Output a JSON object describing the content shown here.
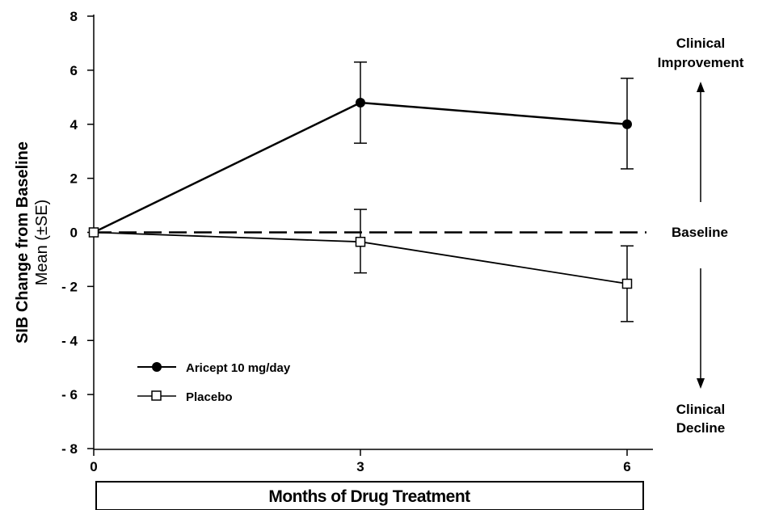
{
  "chart_data": {
    "type": "line",
    "xlabel": "Months of Drug Treatment",
    "ylabel": "SIB Change from Baseline",
    "ylabel_sub": "Mean (±SE)",
    "x": [
      0,
      3,
      6
    ],
    "x_ticks": [
      "0",
      "3",
      "6"
    ],
    "y_ticks": [
      "8",
      "6",
      "4",
      "2",
      "0",
      "- 2",
      "- 4",
      "- 6",
      "- 8"
    ],
    "y_tick_values": [
      8,
      6,
      4,
      2,
      0,
      -2,
      -4,
      -6,
      -8
    ],
    "xlim": [
      0,
      6.3
    ],
    "ylim": [
      -8,
      8
    ],
    "grid": false,
    "legend_position": "bottom-left",
    "series": [
      {
        "name": "Aricept 10 mg/day",
        "marker": "filled-circle",
        "color": "#000000",
        "values": [
          0,
          4.8,
          4.0
        ],
        "se_low": [
          0,
          3.3,
          2.35
        ],
        "se_high": [
          0,
          6.3,
          5.7
        ]
      },
      {
        "name": "Placebo",
        "marker": "open-square",
        "color": "#000000",
        "values": [
          0,
          -0.35,
          -1.9
        ],
        "se_low": [
          0,
          -1.5,
          -3.3
        ],
        "se_high": [
          0,
          0.85,
          -0.5
        ]
      }
    ],
    "baseline": {
      "value": 0,
      "style": "dashed",
      "label": "Baseline"
    },
    "annotations": {
      "improvement": [
        "Clinical",
        "Improvement"
      ],
      "decline": [
        "Clinical",
        "Decline"
      ]
    }
  }
}
